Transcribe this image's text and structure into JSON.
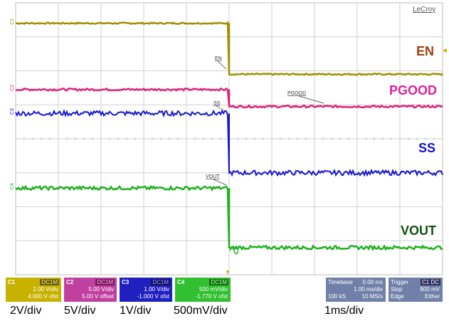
{
  "brand": "LeCroy",
  "chart_data": {
    "type": "line",
    "title": "",
    "x_unit": "div",
    "xlim": [
      0,
      10
    ],
    "ylim": [
      -4,
      4
    ],
    "grid": true,
    "trigger_x": 5.0,
    "series": [
      {
        "name": "EN",
        "color": "#a09000",
        "label_color": "#a04010",
        "before": 3.4,
        "after": 1.9,
        "drop_x": 5.0,
        "noise": 0.02
      },
      {
        "name": "PGOOD",
        "color": "#e0207a",
        "label_color": "#e020a0",
        "before": 1.45,
        "after": 0.95,
        "drop_x": 5.0,
        "noise": 0.03
      },
      {
        "name": "SS",
        "color": "#1818d0",
        "label_color": "#1010e0",
        "before": 0.75,
        "after": -1.0,
        "drop_x": 5.0,
        "noise": 0.07
      },
      {
        "name": "VOUT",
        "color": "#20b020",
        "label_color": "#105010",
        "before": -1.45,
        "after": -3.2,
        "drop_x": 5.0,
        "noise": 0.05
      }
    ],
    "trace_labels": [
      "EN",
      "PGOOD",
      "SS",
      "VOUT"
    ],
    "inline_labels": [
      "EN",
      "PGOOD",
      "SS",
      "VOUT"
    ],
    "left_markers": [
      "C1",
      "C2",
      "C3",
      "C4"
    ]
  },
  "channels": [
    {
      "id": "C1",
      "coupling": "DC1M",
      "scale": "2.00 V/div",
      "offset": "4.000 V ofst"
    },
    {
      "id": "C2",
      "coupling": "DC1M",
      "scale": "5.00 V/div",
      "offset": "5.00 V offset"
    },
    {
      "id": "C3",
      "coupling": "DC1M",
      "scale": "1.00 V/div",
      "offset": "-1.000 V ofst"
    },
    {
      "id": "C4",
      "coupling": "DC1M",
      "scale": "500 mV/div",
      "offset": "-1.770 V ofst"
    }
  ],
  "timebase": {
    "title": "Timebase",
    "value": "0.00 ms",
    "per_div": "1.00 ms/div",
    "samples": "100 kS",
    "rate": "10 MS/s"
  },
  "trigger": {
    "title": "Trigger",
    "source": "C1 DC",
    "mode": "Stop",
    "level": "800 mV",
    "type": "Edge",
    "slope": "Either"
  },
  "captions": [
    "2V/div",
    "5V/div",
    "1V/div",
    "500mV/div",
    "1ms/div"
  ]
}
